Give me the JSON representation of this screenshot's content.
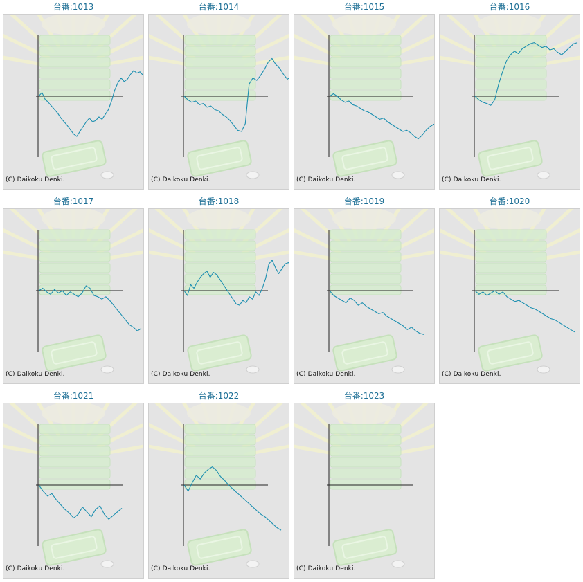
{
  "copyright": "(C) Daikoku Denki.",
  "colors": {
    "title": "#1d6f95",
    "line": "#1c8fb0",
    "axis": "#222222",
    "panel": "#e4e4e4"
  },
  "chart_data": [
    {
      "type": "line",
      "title": "台番:1013",
      "xlabel": "",
      "ylabel": "",
      "ylim": [
        -100,
        100
      ],
      "values": [
        0,
        6,
        -5,
        -10,
        -16,
        -22,
        -28,
        -36,
        -42,
        -48,
        -55,
        -62,
        -66,
        -58,
        -50,
        -42,
        -36,
        -42,
        -40,
        -34,
        -38,
        -30,
        -22,
        -8,
        10,
        22,
        30,
        24,
        28,
        36,
        42,
        38,
        40,
        34,
        32,
        30
      ]
    },
    {
      "type": "line",
      "title": "台番:1014",
      "xlabel": "",
      "ylabel": "",
      "ylim": [
        -100,
        100
      ],
      "values": [
        0,
        -6,
        -10,
        -8,
        -14,
        -12,
        -18,
        -16,
        -22,
        -24,
        -30,
        -34,
        -40,
        -48,
        -56,
        -58,
        -45,
        20,
        30,
        26,
        34,
        44,
        56,
        62,
        52,
        46,
        36,
        28,
        32,
        30
      ]
    },
    {
      "type": "line",
      "title": "台番:1015",
      "xlabel": "",
      "ylabel": "",
      "ylim": [
        -100,
        100
      ],
      "values": [
        0,
        4,
        0,
        -6,
        -10,
        -8,
        -14,
        -16,
        -20,
        -24,
        -26,
        -30,
        -34,
        -38,
        -36,
        -42,
        -46,
        -50,
        -54,
        -58,
        -56,
        -60,
        -66,
        -70,
        -64,
        -56,
        -50,
        -46,
        -48
      ]
    },
    {
      "type": "line",
      "title": "台番:1016",
      "xlabel": "",
      "ylabel": "",
      "ylim": [
        -100,
        100
      ],
      "values": [
        0,
        -6,
        -10,
        -12,
        -15,
        -6,
        20,
        40,
        58,
        68,
        74,
        70,
        78,
        82,
        86,
        88,
        84,
        80,
        82,
        76,
        78,
        72,
        68,
        74,
        80,
        86,
        88
      ]
    },
    {
      "type": "line",
      "title": "台番:1017",
      "xlabel": "",
      "ylabel": "",
      "ylim": [
        -100,
        100
      ],
      "values": [
        0,
        4,
        -2,
        -6,
        2,
        -4,
        0,
        -8,
        -2,
        -6,
        -10,
        -4,
        8,
        4,
        -8,
        -10,
        -14,
        -10,
        -16,
        -24,
        -32,
        -40,
        -48,
        -56,
        -60,
        -66,
        -62
      ]
    },
    {
      "type": "line",
      "title": "台番:1018",
      "xlabel": "",
      "ylabel": "",
      "ylim": [
        -100,
        100
      ],
      "values": [
        0,
        -8,
        10,
        4,
        14,
        22,
        28,
        32,
        22,
        30,
        26,
        18,
        10,
        2,
        -6,
        -14,
        -22,
        -24,
        -16,
        -20,
        -10,
        -14,
        -2,
        -8,
        4,
        20,
        44,
        50,
        38,
        28,
        36,
        44,
        46,
        40,
        42
      ]
    },
    {
      "type": "line",
      "title": "台番:1019",
      "xlabel": "",
      "ylabel": "",
      "ylim": [
        -100,
        100
      ],
      "values": [
        0,
        -8,
        -12,
        -16,
        -20,
        -12,
        -16,
        -24,
        -20,
        -26,
        -30,
        -34,
        -38,
        -36,
        -42,
        -46,
        -50,
        -54,
        -58,
        -64,
        -60,
        -66,
        -70,
        -72
      ]
    },
    {
      "type": "line",
      "title": "台番:1020",
      "xlabel": "",
      "ylabel": "",
      "ylim": [
        -100,
        100
      ],
      "values": [
        0,
        -6,
        -2,
        -8,
        -4,
        0,
        -6,
        -2,
        -10,
        -14,
        -18,
        -16,
        -20,
        -24,
        -28,
        -30,
        -34,
        -38,
        -42,
        -46,
        -48,
        -52,
        -56,
        -60,
        -64,
        -68
      ]
    },
    {
      "type": "line",
      "title": "台番:1021",
      "xlabel": "",
      "ylabel": "",
      "ylim": [
        -100,
        100
      ],
      "values": [
        0,
        -10,
        -18,
        -14,
        -24,
        -32,
        -40,
        -46,
        -54,
        -48,
        -36,
        -44,
        -52,
        -40,
        -34,
        -48,
        -56,
        -50,
        -44,
        -38
      ]
    },
    {
      "type": "line",
      "title": "台番:1022",
      "xlabel": "",
      "ylabel": "",
      "ylim": [
        -100,
        100
      ],
      "values": [
        0,
        -10,
        4,
        16,
        10,
        20,
        26,
        30,
        24,
        14,
        8,
        0,
        -6,
        -12,
        -18,
        -24,
        -30,
        -36,
        -42,
        -48,
        -52,
        -58,
        -64,
        -70,
        -74
      ]
    },
    {
      "type": "line",
      "title": "台番:1023",
      "xlabel": "",
      "ylabel": "",
      "ylim": [
        -100,
        100
      ],
      "values": []
    }
  ]
}
